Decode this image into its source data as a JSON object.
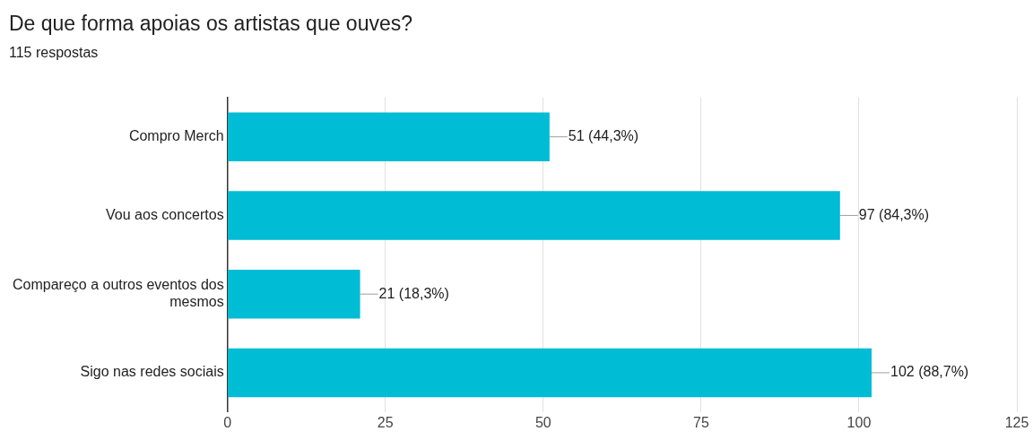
{
  "chart_data": {
    "type": "bar",
    "orientation": "horizontal",
    "title": "De que forma apoias os artistas que ouves?",
    "subtitle": "115 respostas",
    "categories": [
      "Compro Merch",
      "Vou aos concertos",
      "Compareço a outros eventos dos mesmos",
      "Sigo nas redes sociais"
    ],
    "values": [
      51,
      97,
      21,
      102
    ],
    "color": "#00bcd4",
    "value_labels": [
      "51 (44,3%)",
      "97 (84,3%)",
      "21 (18,3%)",
      "102 (88,7%)"
    ],
    "xlim": [
      0,
      125
    ],
    "xticks": [
      0,
      25,
      50,
      75,
      100,
      125
    ],
    "grid": "x",
    "legend": false
  }
}
